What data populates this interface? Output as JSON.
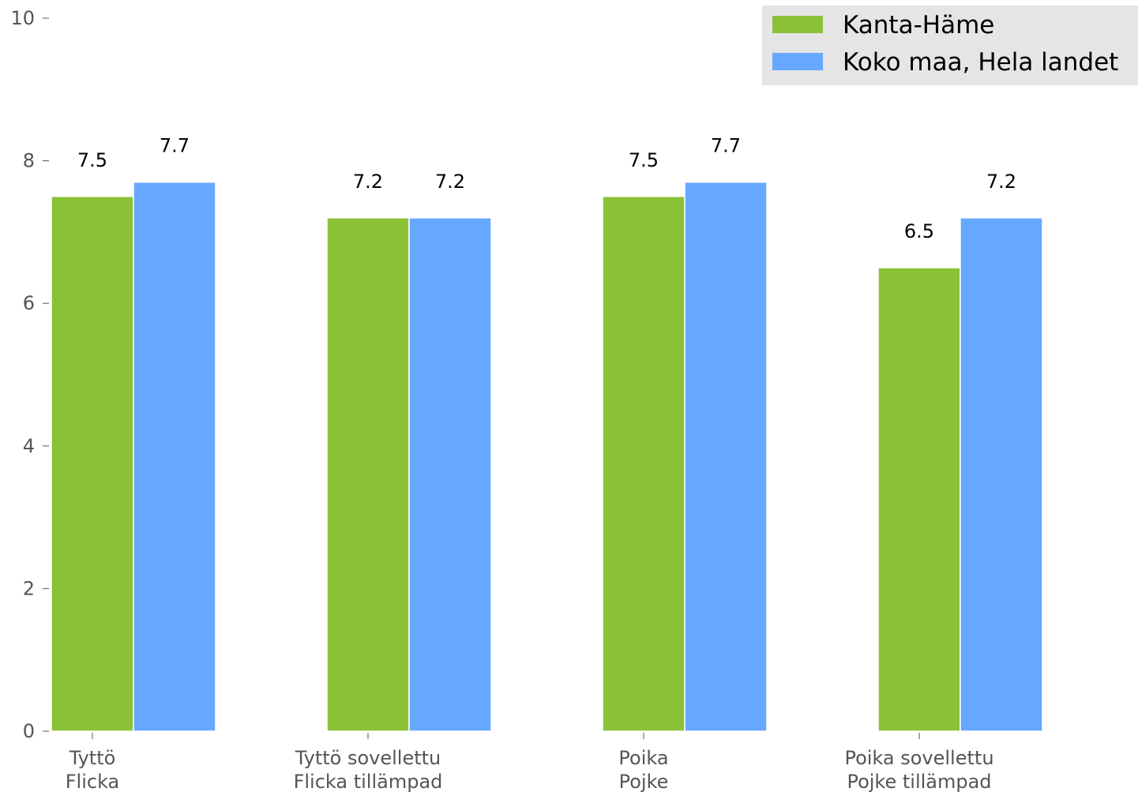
{
  "chart_data": {
    "type": "bar",
    "categories": [
      [
        "Tyttö",
        "Flicka"
      ],
      [
        "Tyttö sovellettu",
        "Flicka tillämpad"
      ],
      [
        "Poika",
        "Pojke"
      ],
      [
        "Poika sovellettu",
        "Pojke tillämpad"
      ]
    ],
    "series": [
      {
        "name": "Kanta-Häme",
        "color": "#8bc136",
        "values": [
          7.5,
          7.2,
          7.5,
          6.5
        ]
      },
      {
        "name": "Koko maa, Hela landet",
        "color": "#66a8ff",
        "values": [
          7.7,
          7.2,
          7.7,
          7.2
        ]
      }
    ],
    "ylim": [
      0,
      10
    ],
    "yticks": [
      0,
      2,
      4,
      6,
      8,
      10
    ],
    "data_labels": [
      [
        "7.5",
        "7.2",
        "7.5",
        "6.5"
      ],
      [
        "7.7",
        "7.2",
        "7.7",
        "7.2"
      ]
    ],
    "legend_position": "top-right",
    "grid": false,
    "title": "",
    "xlabel": "",
    "ylabel": ""
  }
}
